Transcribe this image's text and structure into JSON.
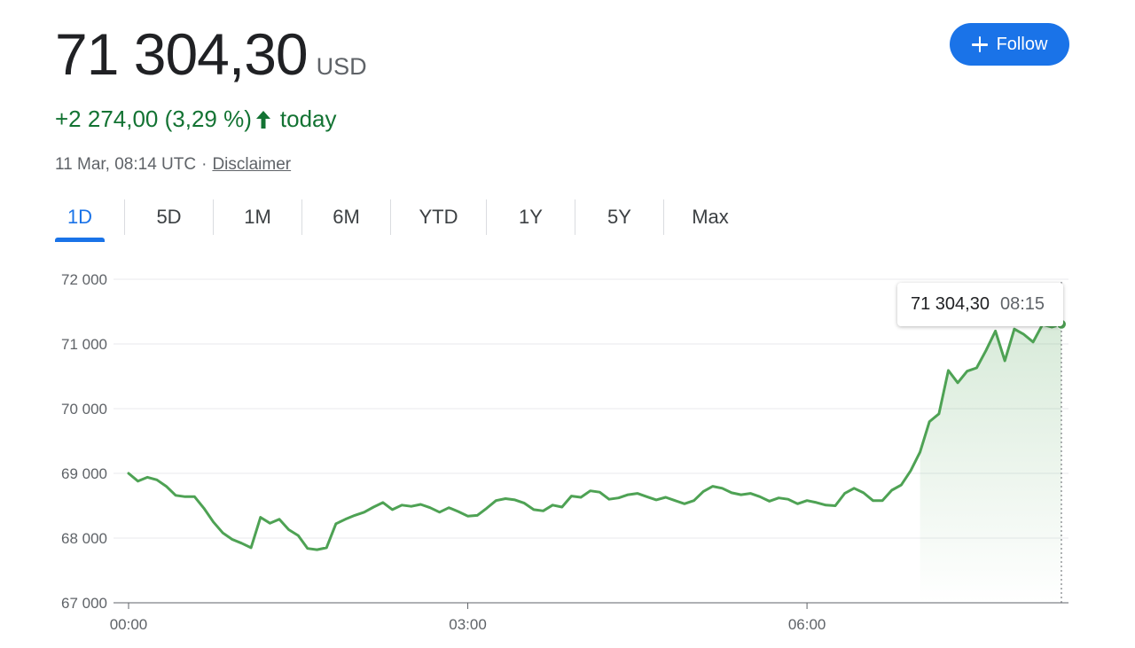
{
  "quote": {
    "price": "71 304,30",
    "currency": "USD",
    "change": "+2 274,00 (3,29 %)",
    "period": "today",
    "timestamp": "11 Mar, 08:14 UTC",
    "separator": "·",
    "disclaimer": "Disclaimer"
  },
  "follow": {
    "label": "Follow"
  },
  "tabs": [
    {
      "label": "1D",
      "active": true
    },
    {
      "label": "5D"
    },
    {
      "label": "1M"
    },
    {
      "label": "6M"
    },
    {
      "label": "YTD"
    },
    {
      "label": "1Y"
    },
    {
      "label": "5Y"
    },
    {
      "label": "Max"
    }
  ],
  "tooltip": {
    "value": "71 304,30",
    "time": "08:15"
  },
  "colors": {
    "line": "#4ea254",
    "positive": "#137333",
    "accent": "#1a73e8"
  },
  "chart_data": {
    "type": "area",
    "title": "",
    "xlabel": "",
    "ylabel": "",
    "ylim": [
      67000,
      72000
    ],
    "yticks": [
      67000,
      68000,
      69000,
      70000,
      71000,
      72000
    ],
    "ytick_labels": [
      "67 000",
      "68 000",
      "69 000",
      "70 000",
      "71 000",
      "72 000"
    ],
    "xticks": [
      0,
      180,
      360
    ],
    "xtick_labels": [
      "00:00",
      "03:00",
      "06:00"
    ],
    "x_range_minutes": [
      0,
      495
    ],
    "grid": true,
    "series": [
      {
        "x": [
          0,
          5,
          10,
          15,
          20,
          25,
          30,
          35,
          40,
          45,
          50,
          55,
          60,
          65,
          70,
          75,
          80,
          85,
          90,
          95,
          100,
          105,
          110,
          115,
          120,
          125,
          130,
          135,
          140,
          145,
          150,
          155,
          160,
          165,
          170,
          175,
          180,
          185,
          190,
          195,
          200,
          205,
          210,
          215,
          220,
          225,
          230,
          235,
          240,
          245,
          250,
          255,
          260,
          265,
          270,
          275,
          280,
          285,
          290,
          295,
          300,
          305,
          310,
          315,
          320,
          325,
          330,
          335,
          340,
          345,
          350,
          355,
          360,
          365,
          370,
          375,
          380,
          385,
          390,
          395,
          400,
          405,
          410,
          415,
          420,
          425,
          430,
          435,
          440,
          445,
          450,
          455,
          460,
          465,
          470,
          475,
          480,
          485,
          490,
          495
        ],
        "values": [
          69000,
          68880,
          68940,
          68900,
          68800,
          68660,
          68640,
          68640,
          68460,
          68250,
          68080,
          67980,
          67920,
          67850,
          68320,
          68230,
          68290,
          68130,
          68040,
          67840,
          67820,
          67850,
          68220,
          68290,
          68350,
          68400,
          68480,
          68550,
          68440,
          68510,
          68490,
          68520,
          68470,
          68400,
          68470,
          68410,
          68340,
          68350,
          68460,
          68580,
          68610,
          68590,
          68540,
          68440,
          68420,
          68510,
          68480,
          68650,
          68630,
          68730,
          68710,
          68600,
          68620,
          68670,
          68690,
          68640,
          68590,
          68630,
          68580,
          68530,
          68580,
          68720,
          68800,
          68770,
          68700,
          68670,
          68690,
          68640,
          68570,
          68620,
          68600,
          68530,
          68580,
          68550,
          68510,
          68500,
          68690,
          68770,
          68700,
          68580,
          68580,
          68740,
          68820,
          69040,
          69330,
          69800,
          69920,
          70590,
          70400,
          70580,
          70630,
          70900,
          71200,
          70740,
          71230,
          71150,
          71030,
          71300,
          71260,
          71304
        ]
      }
    ]
  }
}
